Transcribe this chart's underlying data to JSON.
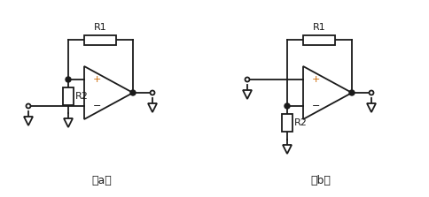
{
  "fig_width": 4.85,
  "fig_height": 2.23,
  "dpi": 100,
  "bg_color": "#ffffff",
  "line_color": "#1a1a1a",
  "line_width": 1.3,
  "dot_color": "#1a1a1a",
  "label_a": "（a）",
  "label_b": "（b）",
  "R1_label": "R1",
  "R2_label": "R2",
  "plus_color": "#0000cc",
  "minus_color": "#1a1a1a",
  "plus_color_a": "#cc6600"
}
